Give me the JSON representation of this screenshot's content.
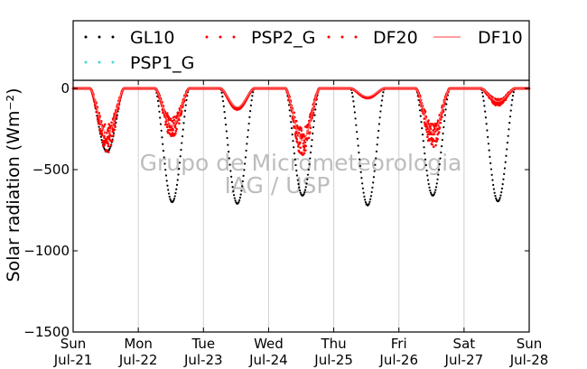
{
  "chart_data": {
    "type": "scatter",
    "title": "",
    "ylabel": "Solar radiation (Wm⁻²)",
    "ylim": [
      -1500,
      50
    ],
    "yticks": [
      0,
      -500,
      -1000,
      -1500
    ],
    "ytick_labels": [
      "0",
      "−500",
      "−1000",
      "−1500"
    ],
    "xlim": [
      "2024-07-21",
      "2024-07-28"
    ],
    "xticks": [
      {
        "date": "2024-07-21",
        "line1": "Sun",
        "line2": "Jul-21"
      },
      {
        "date": "2024-07-22",
        "line1": "Mon",
        "line2": "Jul-22"
      },
      {
        "date": "2024-07-23",
        "line1": "Tue",
        "line2": "Jul-23"
      },
      {
        "date": "2024-07-24",
        "line1": "Wed",
        "line2": "Jul-24"
      },
      {
        "date": "2024-07-25",
        "line1": "Thu",
        "line2": "Jul-25"
      },
      {
        "date": "2024-07-26",
        "line1": "Fri",
        "line2": "Jul-26"
      },
      {
        "date": "2024-07-27",
        "line1": "Sat",
        "line2": "Jul-27"
      },
      {
        "date": "2024-07-28",
        "line1": "Sun",
        "line2": "Jul-28"
      }
    ],
    "grid": "vertical",
    "legend_position": "top",
    "series": [
      {
        "name": "GL10",
        "style": "dots",
        "color": "#000000",
        "peaks": [
          -390,
          -700,
          -710,
          -660,
          -720,
          -660,
          -695
        ]
      },
      {
        "name": "PSP2_G",
        "style": "dots",
        "color": "#ff0000",
        "peaks": [
          -320,
          -250,
          -130,
          -350,
          -60,
          -300,
          -90
        ]
      },
      {
        "name": "DF20",
        "style": "dots",
        "color": "#ff0000",
        "peaks": [
          -300,
          -240,
          -120,
          -330,
          -55,
          -280,
          -85
        ]
      },
      {
        "name": "DF10",
        "style": "line",
        "color": "#ff6666",
        "peaks": [
          -280,
          -230,
          -115,
          -320,
          -50,
          -270,
          -80
        ]
      },
      {
        "name": "PSP1_G",
        "style": "dots",
        "color": "#40e0d0",
        "peaks": []
      }
    ]
  },
  "watermark": {
    "line1": "Grupo de Micrometeorologia",
    "line2": "IAG / USP"
  }
}
